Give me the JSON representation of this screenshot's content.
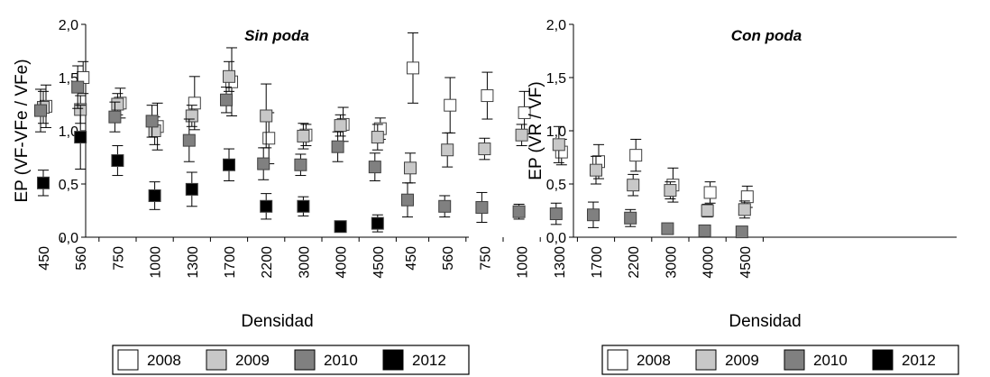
{
  "colors": {
    "2008": "#ffffff",
    "2009": "#c8c8c8",
    "2010": "#808080",
    "2012": "#000000",
    "marker_stroke": "#404040",
    "axis": "#000000"
  },
  "legend": {
    "entries": [
      {
        "label": "2008",
        "color_key": "2008"
      },
      {
        "label": "2009",
        "color_key": "2009"
      },
      {
        "label": "2010",
        "color_key": "2010"
      },
      {
        "label": "2012",
        "color_key": "2012"
      }
    ]
  },
  "chart_data": [
    {
      "type": "scatter",
      "title": "Sin poda",
      "xlabel": "Densidad",
      "ylabel": "EP (VF-VFe / VFe)",
      "categories": [
        "450",
        "560",
        "750",
        "1000",
        "1300",
        "1700",
        "2200",
        "3000",
        "4000",
        "4500"
      ],
      "ylim": [
        0,
        2.0
      ],
      "yticks": [
        "0,0",
        "0,5",
        "1,0",
        "1,5",
        "2,0"
      ],
      "error_bars": true,
      "series": [
        {
          "name": "2008",
          "values": [
            1.23,
            1.5,
            1.26,
            1.04,
            1.26,
            1.46,
            0.93,
            0.96,
            1.06,
            1.02
          ],
          "errors": [
            0.2,
            0.15,
            0.14,
            0.22,
            0.25,
            0.32,
            0.24,
            0.1,
            0.16,
            0.1
          ]
        },
        {
          "name": "2009",
          "values": [
            1.22,
            1.2,
            1.25,
            1.0,
            1.14,
            1.51,
            1.14,
            0.95,
            1.05,
            0.94
          ],
          "errors": [
            0.15,
            0.13,
            0.1,
            0.13,
            0.1,
            0.14,
            0.3,
            0.12,
            0.1,
            0.12
          ]
        },
        {
          "name": "2010",
          "values": [
            1.19,
            1.41,
            1.13,
            1.09,
            0.91,
            1.29,
            0.69,
            0.68,
            0.85,
            0.66
          ],
          "errors": [
            0.2,
            0.2,
            0.14,
            0.15,
            0.2,
            0.12,
            0.15,
            0.1,
            0.14,
            0.13
          ]
        },
        {
          "name": "2012",
          "values": [
            0.51,
            0.94,
            0.72,
            0.39,
            0.45,
            0.68,
            0.29,
            0.29,
            0.1,
            0.13
          ],
          "errors": [
            0.12,
            0.3,
            0.14,
            0.13,
            0.16,
            0.15,
            0.12,
            0.09,
            0.05,
            0.08
          ]
        }
      ]
    },
    {
      "type": "scatter",
      "title": "Con poda",
      "xlabel": "Densidad",
      "ylabel": "EP (VR / VF)",
      "categories": [
        "450",
        "560",
        "750",
        "1000",
        "1300",
        "1700",
        "2200",
        "3000",
        "4000",
        "4500"
      ],
      "ylim": [
        0,
        2.0
      ],
      "yticks": [
        "0,0",
        "0,5",
        "1,0",
        "1,5",
        "2,0"
      ],
      "error_bars": true,
      "series": [
        {
          "name": "2008",
          "values": [
            1.59,
            1.24,
            1.33,
            1.17,
            0.8,
            0.71,
            0.77,
            0.49,
            0.42,
            0.38
          ],
          "errors": [
            0.33,
            0.26,
            0.22,
            0.2,
            0.12,
            0.16,
            0.15,
            0.16,
            0.1,
            0.1
          ]
        },
        {
          "name": "2009",
          "values": [
            0.65,
            0.82,
            0.83,
            0.96,
            0.87,
            0.63,
            0.49,
            0.44,
            0.25,
            0.26
          ],
          "errors": [
            0.14,
            0.16,
            0.1,
            0.1,
            0.17,
            0.13,
            0.1,
            0.08,
            0.06,
            0.08
          ]
        },
        {
          "name": "2010",
          "values": [
            0.35,
            0.29,
            0.28,
            0.24,
            0.22,
            0.21,
            0.18,
            0.08,
            0.06,
            0.05
          ],
          "errors": [
            0.16,
            0.1,
            0.14,
            0.07,
            0.1,
            0.12,
            0.08,
            0.03,
            0.02,
            0.02
          ]
        }
      ]
    }
  ]
}
